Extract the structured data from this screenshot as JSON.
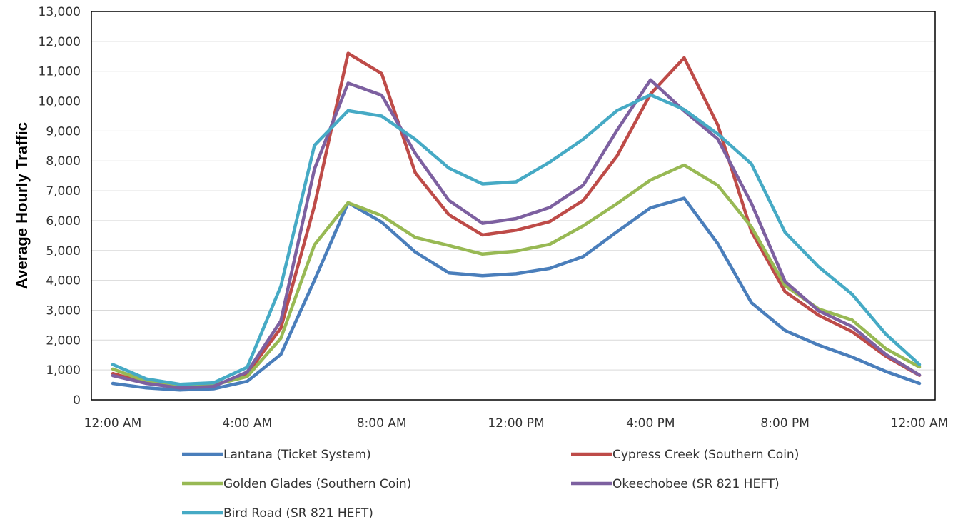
{
  "chart_data": {
    "type": "line",
    "title": "",
    "xlabel": "",
    "ylabel": "Average Hourly Traffic",
    "ylim": [
      0,
      13000
    ],
    "y_ticks": [
      "0",
      "1,000",
      "2,000",
      "3,000",
      "4,000",
      "5,000",
      "6,000",
      "7,000",
      "8,000",
      "9,000",
      "10,000",
      "11,000",
      "12,000",
      "13,000"
    ],
    "x_tick_labels": [
      "12:00 AM",
      "4:00 AM",
      "8:00 AM",
      "12:00 PM",
      "4:00 PM",
      "8:00 PM",
      "12:00 AM"
    ],
    "x_hours": [
      0,
      1,
      2,
      3,
      4,
      5,
      6,
      7,
      8,
      9,
      10,
      11,
      12,
      13,
      14,
      15,
      16,
      17,
      18,
      19,
      20,
      21,
      22,
      23,
      24
    ],
    "grid": true,
    "legend_position": "bottom",
    "series": [
      {
        "name": "Lantana (Ticket System)",
        "color": "#4a7ebb",
        "values": [
          550,
          400,
          330,
          370,
          620,
          1520,
          4000,
          6600,
          5950,
          4950,
          4250,
          4150,
          4220,
          4400,
          4800,
          5630,
          6430,
          6750,
          5230,
          3250,
          2320,
          1830,
          1430,
          950,
          550
        ]
      },
      {
        "name": "Cypress Creek (Southern Coin)",
        "color": "#be4b48",
        "values": [
          880,
          570,
          420,
          470,
          880,
          2400,
          6500,
          11600,
          10920,
          7600,
          6200,
          5520,
          5680,
          5970,
          6680,
          8160,
          10240,
          11450,
          9200,
          5640,
          3620,
          2830,
          2280,
          1460,
          820
        ]
      },
      {
        "name": "Golden Glades (Southern Coin)",
        "color": "#98b954",
        "values": [
          1030,
          620,
          450,
          500,
          780,
          2060,
          5190,
          6600,
          6170,
          5440,
          5170,
          4880,
          4980,
          5210,
          5830,
          6570,
          7360,
          7860,
          7180,
          5790,
          3820,
          3040,
          2670,
          1710,
          1100
        ]
      },
      {
        "name": "Okeechobee (SR 821 HEFT)",
        "color": "#7d60a0",
        "values": [
          810,
          550,
          400,
          450,
          930,
          2640,
          7730,
          10600,
          10200,
          8250,
          6680,
          5910,
          6070,
          6440,
          7190,
          9020,
          10710,
          9670,
          8730,
          6580,
          3960,
          2980,
          2450,
          1520,
          830
        ]
      },
      {
        "name": "Bird Road (SR 821 HEFT)",
        "color": "#46aac5",
        "values": [
          1180,
          700,
          520,
          570,
          1090,
          3800,
          8520,
          9680,
          9500,
          8720,
          7760,
          7230,
          7300,
          7960,
          8730,
          9680,
          10210,
          9720,
          8900,
          7900,
          5610,
          4450,
          3530,
          2200,
          1180
        ]
      }
    ]
  }
}
